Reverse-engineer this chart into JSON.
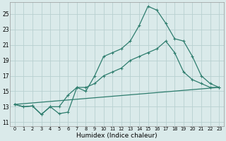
{
  "title": "",
  "xlabel": "Humidex (Indice chaleur)",
  "bg_color": "#daeaea",
  "line_color": "#2e7d6e",
  "grid_color": "#b8d0d0",
  "series1_x": [
    0,
    1,
    2,
    3,
    4,
    5,
    6,
    7,
    8,
    9,
    10,
    11,
    12,
    13,
    14,
    15,
    16,
    17,
    18,
    19,
    20,
    21,
    22,
    23
  ],
  "series1_y": [
    13.3,
    13.0,
    13.1,
    12.0,
    13.0,
    12.1,
    12.3,
    15.5,
    15.0,
    17.0,
    19.5,
    20.0,
    20.5,
    21.5,
    23.5,
    26.0,
    25.5,
    23.8,
    21.8,
    21.5,
    19.5,
    17.0,
    16.0,
    15.5
  ],
  "series2_x": [
    0,
    1,
    2,
    3,
    4,
    5,
    6,
    7,
    8,
    9,
    10,
    11,
    12,
    13,
    14,
    15,
    16,
    17,
    18,
    19,
    20,
    21,
    22,
    23
  ],
  "series2_y": [
    13.3,
    13.0,
    13.1,
    12.0,
    13.0,
    13.0,
    14.5,
    15.5,
    15.5,
    16.0,
    17.0,
    17.5,
    18.0,
    19.0,
    19.5,
    20.0,
    20.5,
    21.5,
    20.0,
    17.5,
    16.5,
    16.0,
    15.5,
    15.5
  ],
  "series3_x": [
    0,
    23
  ],
  "series3_y": [
    13.3,
    15.5
  ],
  "xlim": [
    -0.5,
    23.5
  ],
  "ylim": [
    10.5,
    26.5
  ],
  "xticks": [
    0,
    1,
    2,
    3,
    4,
    5,
    6,
    7,
    8,
    9,
    10,
    11,
    12,
    13,
    14,
    15,
    16,
    17,
    18,
    19,
    20,
    21,
    22,
    23
  ],
  "yticks": [
    11,
    13,
    15,
    17,
    19,
    21,
    23,
    25
  ]
}
